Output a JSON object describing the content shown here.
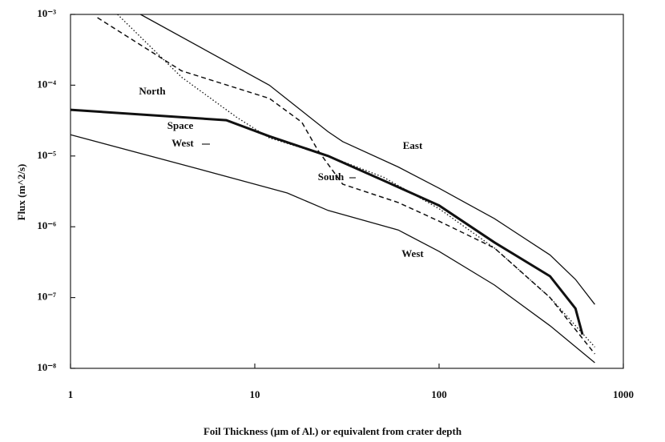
{
  "chart_data": {
    "type": "line",
    "xlabel": "Foil Thickness (µm of Al.) or equivalent from crater depth",
    "ylabel": "Flux (m^2/s)",
    "xscale": "log",
    "yscale": "log",
    "xlim": [
      1,
      1000
    ],
    "ylim": [
      1e-08,
      0.001
    ],
    "xticks": [
      1,
      10,
      100,
      1000
    ],
    "yticks": [
      {
        "value": 0.001,
        "label": "10⁻³"
      },
      {
        "value": 0.0001,
        "label": "10⁻⁴"
      },
      {
        "value": 1e-05,
        "label": "10⁻⁵"
      },
      {
        "value": 1e-06,
        "label": "10⁻⁶"
      },
      {
        "value": 1e-07,
        "label": "10⁻⁷"
      },
      {
        "value": 1e-08,
        "label": "10⁻⁸"
      }
    ],
    "series": [
      {
        "name": "East",
        "color": "#111",
        "linestyle": "solid",
        "x": [
          2.4,
          12,
          25,
          30,
          60,
          100,
          200,
          400,
          550,
          700
        ],
        "values": [
          0.001,
          0.0001,
          2.2e-05,
          1.6e-05,
          7e-06,
          3.5e-06,
          1.3e-06,
          4e-07,
          1.8e-07,
          8e-08
        ]
      },
      {
        "name": "Space",
        "color": "#111",
        "linestyle": "bold",
        "x": [
          1,
          7,
          12,
          25,
          50,
          100,
          200,
          400,
          550,
          600
        ],
        "values": [
          4.5e-05,
          3.2e-05,
          1.9e-05,
          1e-05,
          4.5e-06,
          2e-06,
          6e-07,
          2e-07,
          7e-08,
          3e-08
        ]
      },
      {
        "name": "North",
        "color": "#111",
        "linestyle": "dotted",
        "x": [
          1.8,
          4,
          8,
          12,
          25,
          50,
          100,
          200,
          400,
          700
        ],
        "values": [
          0.001,
          0.00013,
          3.5e-05,
          1.8e-05,
          1e-05,
          5e-06,
          1.8e-06,
          5e-07,
          1e-07,
          2e-08
        ]
      },
      {
        "name": "South",
        "color": "#111",
        "linestyle": "dashed",
        "x": [
          1.4,
          2,
          4,
          12,
          18,
          22,
          30,
          60,
          100,
          200,
          400,
          700
        ],
        "values": [
          0.0009,
          0.0005,
          0.00016,
          6.5e-05,
          3e-05,
          1.2e-05,
          4e-06,
          2.2e-06,
          1.2e-06,
          5e-07,
          1e-07,
          1.6e-08
        ]
      },
      {
        "name": "West",
        "color": "#111",
        "linestyle": "solid",
        "x": [
          1,
          5,
          10,
          15,
          25,
          60,
          100,
          200,
          400,
          700
        ],
        "values": [
          2e-05,
          6.5e-06,
          4e-06,
          3e-06,
          1.7e-06,
          9e-07,
          4.5e-07,
          1.5e-07,
          4e-08,
          1.2e-08
        ]
      }
    ],
    "annotations": [
      "West"
    ]
  }
}
